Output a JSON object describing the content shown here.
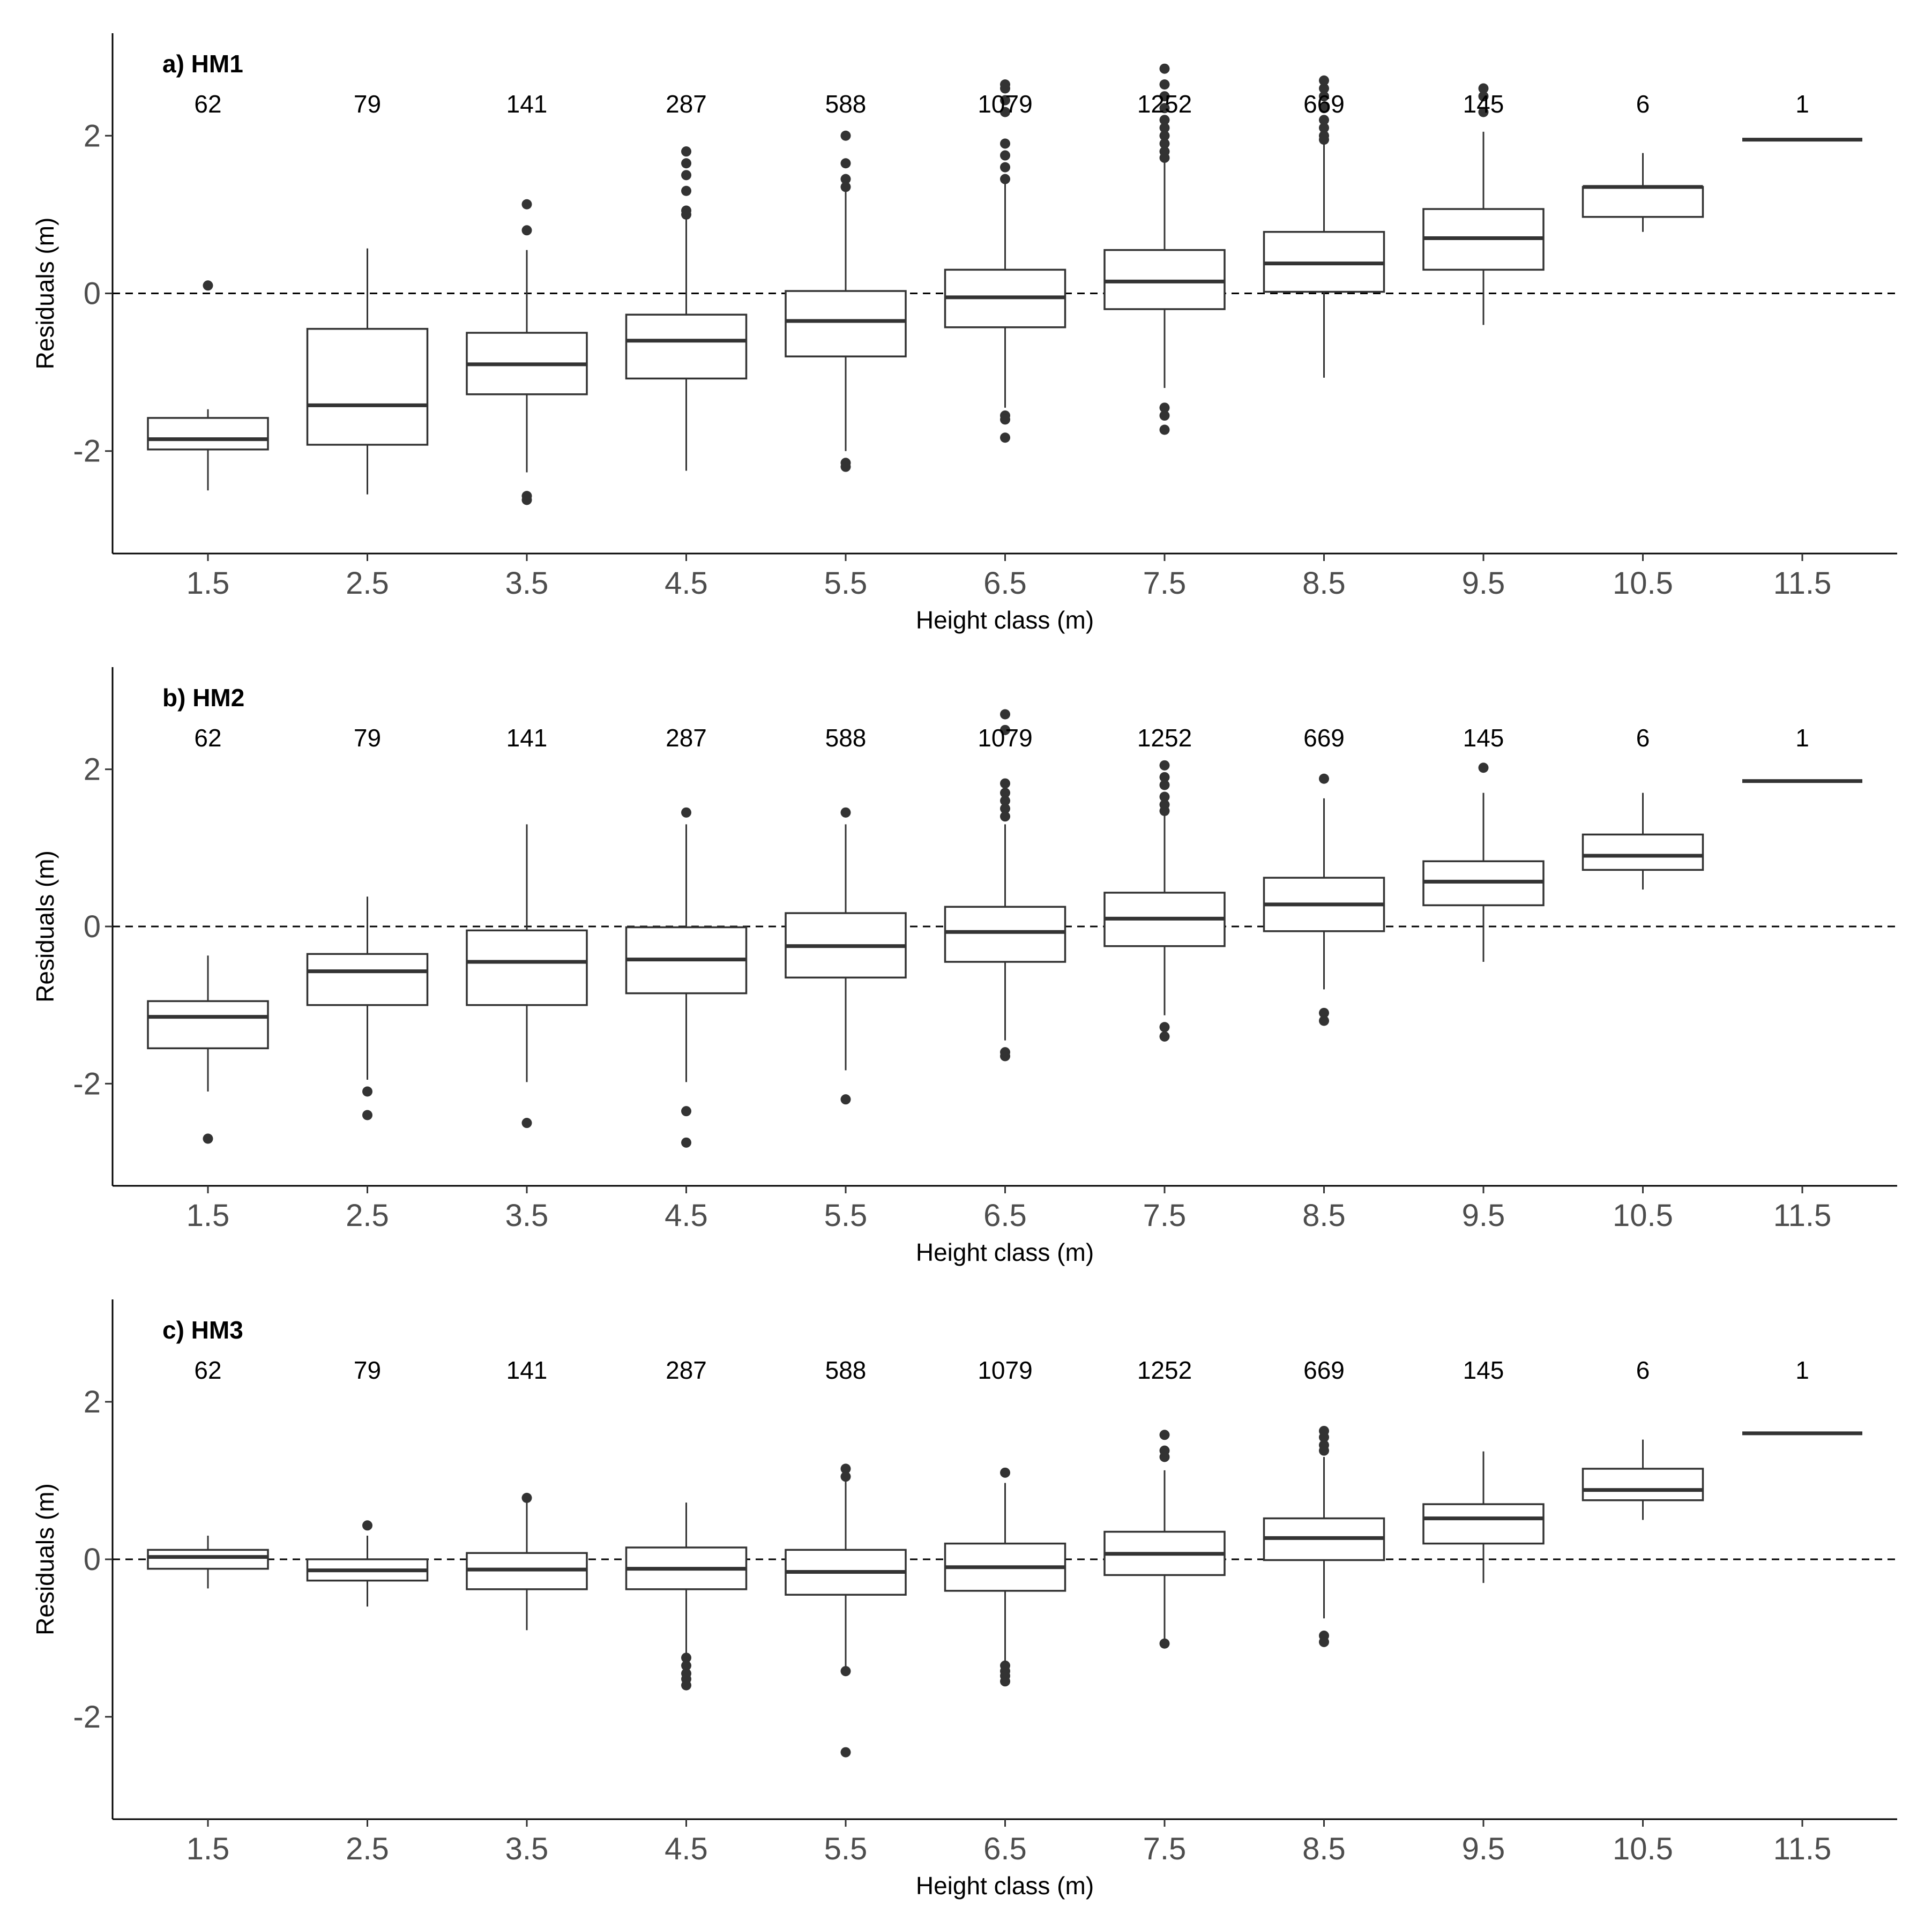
{
  "chart_data": [
    {
      "type": "boxplot",
      "title": "a) HM1",
      "xlabel": "Height class (m)",
      "ylabel": "Residuals (m)",
      "ylim": [
        -3.3,
        3.3
      ],
      "yticks": [
        -2,
        0,
        2
      ],
      "reference_line": 0,
      "categories": [
        "1.5",
        "2.5",
        "3.5",
        "4.5",
        "5.5",
        "6.5",
        "7.5",
        "8.5",
        "9.5",
        "10.5",
        "11.5"
      ],
      "counts": [
        "62",
        "79",
        "141",
        "287",
        "588",
        "1079",
        "1252",
        "669",
        "145",
        "6",
        "1"
      ],
      "boxes": [
        {
          "lower_whisker": -2.5,
          "q1": -1.98,
          "median": -1.85,
          "q3": -1.58,
          "upper_whisker": -1.47,
          "outliers": [
            0.1
          ]
        },
        {
          "lower_whisker": -2.55,
          "q1": -1.92,
          "median": -1.42,
          "q3": -0.45,
          "upper_whisker": 0.57,
          "outliers": []
        },
        {
          "lower_whisker": -2.27,
          "q1": -1.28,
          "median": -0.9,
          "q3": -0.5,
          "upper_whisker": 0.55,
          "outliers": [
            0.8,
            1.13,
            -2.57,
            -2.62
          ]
        },
        {
          "lower_whisker": -2.25,
          "q1": -1.08,
          "median": -0.6,
          "q3": -0.27,
          "upper_whisker": 0.95,
          "outliers": [
            1.0,
            1.05,
            1.3,
            1.5,
            1.65,
            1.8
          ]
        },
        {
          "lower_whisker": -2.0,
          "q1": -0.8,
          "median": -0.35,
          "q3": 0.03,
          "upper_whisker": 1.3,
          "outliers": [
            1.35,
            1.45,
            1.65,
            2.0,
            -2.15,
            -2.2
          ]
        },
        {
          "lower_whisker": -1.45,
          "q1": -0.43,
          "median": -0.05,
          "q3": 0.3,
          "upper_whisker": 1.4,
          "outliers": [
            1.45,
            1.6,
            1.75,
            1.9,
            2.3,
            2.45,
            2.6,
            2.65,
            -1.55,
            -1.6,
            -1.83
          ]
        },
        {
          "lower_whisker": -1.2,
          "q1": -0.2,
          "median": 0.15,
          "q3": 0.55,
          "upper_whisker": 1.68,
          "outliers": [
            1.72,
            1.8,
            1.9,
            2.0,
            2.1,
            2.2,
            2.35,
            2.5,
            2.65,
            2.85,
            -1.45,
            -1.55,
            -1.73
          ]
        },
        {
          "lower_whisker": -1.07,
          "q1": 0.02,
          "median": 0.38,
          "q3": 0.78,
          "upper_whisker": 1.9,
          "outliers": [
            1.95,
            2.0,
            2.1,
            2.2,
            2.35,
            2.5,
            2.6,
            2.7
          ]
        },
        {
          "lower_whisker": -0.4,
          "q1": 0.3,
          "median": 0.7,
          "q3": 1.07,
          "upper_whisker": 2.05,
          "outliers": [
            2.3,
            2.5,
            2.6
          ]
        },
        {
          "lower_whisker": 0.78,
          "q1": 0.97,
          "median": 1.35,
          "q3": 1.35,
          "upper_whisker": 1.78,
          "outliers": []
        },
        {
          "lower_whisker": 1.95,
          "q1": 1.95,
          "median": 1.95,
          "q3": 1.95,
          "upper_whisker": 1.95,
          "outliers": []
        }
      ]
    },
    {
      "type": "boxplot",
      "title": "b) HM2",
      "xlabel": "Height class (m)",
      "ylabel": "Residuals (m)",
      "ylim": [
        -3.3,
        3.3
      ],
      "yticks": [
        -2,
        0,
        2
      ],
      "reference_line": 0,
      "categories": [
        "1.5",
        "2.5",
        "3.5",
        "4.5",
        "5.5",
        "6.5",
        "7.5",
        "8.5",
        "9.5",
        "10.5",
        "11.5"
      ],
      "counts": [
        "62",
        "79",
        "141",
        "287",
        "588",
        "1079",
        "1252",
        "669",
        "145",
        "6",
        "1"
      ],
      "boxes": [
        {
          "lower_whisker": -2.1,
          "q1": -1.55,
          "median": -1.15,
          "q3": -0.95,
          "upper_whisker": -0.37,
          "outliers": [
            -2.7
          ]
        },
        {
          "lower_whisker": -1.95,
          "q1": -1.0,
          "median": -0.57,
          "q3": -0.35,
          "upper_whisker": 0.38,
          "outliers": [
            -2.1,
            -2.4
          ]
        },
        {
          "lower_whisker": -1.98,
          "q1": -1.0,
          "median": -0.45,
          "q3": -0.05,
          "upper_whisker": 1.3,
          "outliers": [
            -2.5
          ]
        },
        {
          "lower_whisker": -1.98,
          "q1": -0.85,
          "median": -0.42,
          "q3": -0.01,
          "upper_whisker": 1.3,
          "outliers": [
            1.45,
            -2.35,
            -2.75
          ]
        },
        {
          "lower_whisker": -1.83,
          "q1": -0.65,
          "median": -0.25,
          "q3": 0.17,
          "upper_whisker": 1.3,
          "outliers": [
            1.45,
            -2.2
          ]
        },
        {
          "lower_whisker": -1.45,
          "q1": -0.45,
          "median": -0.07,
          "q3": 0.25,
          "upper_whisker": 1.3,
          "outliers": [
            1.4,
            1.5,
            1.6,
            1.7,
            1.82,
            2.7,
            2.5,
            -1.6,
            -1.65
          ]
        },
        {
          "lower_whisker": -1.13,
          "q1": -0.25,
          "median": 0.1,
          "q3": 0.43,
          "upper_whisker": 1.42,
          "outliers": [
            1.47,
            1.55,
            1.65,
            1.8,
            1.9,
            2.05,
            -1.28,
            -1.4
          ]
        },
        {
          "lower_whisker": -0.8,
          "q1": -0.06,
          "median": 0.28,
          "q3": 0.62,
          "upper_whisker": 1.63,
          "outliers": [
            1.88,
            -1.1,
            -1.2
          ]
        },
        {
          "lower_whisker": -0.45,
          "q1": 0.27,
          "median": 0.57,
          "q3": 0.83,
          "upper_whisker": 1.7,
          "outliers": [
            2.02
          ]
        },
        {
          "lower_whisker": 0.47,
          "q1": 0.72,
          "median": 0.9,
          "q3": 1.17,
          "upper_whisker": 1.7,
          "outliers": []
        },
        {
          "lower_whisker": 1.85,
          "q1": 1.85,
          "median": 1.85,
          "q3": 1.85,
          "upper_whisker": 1.85,
          "outliers": []
        }
      ]
    },
    {
      "type": "boxplot",
      "title": "c) HM3",
      "xlabel": "Height class (m)",
      "ylabel": "Residuals (m)",
      "ylim": [
        -3.3,
        3.3
      ],
      "yticks": [
        -2,
        0,
        2
      ],
      "reference_line": 0,
      "categories": [
        "1.5",
        "2.5",
        "3.5",
        "4.5",
        "5.5",
        "6.5",
        "7.5",
        "8.5",
        "9.5",
        "10.5",
        "11.5"
      ],
      "counts": [
        "62",
        "79",
        "141",
        "287",
        "588",
        "1079",
        "1252",
        "669",
        "145",
        "6",
        "1"
      ],
      "boxes": [
        {
          "lower_whisker": -0.37,
          "q1": -0.12,
          "median": 0.03,
          "q3": 0.12,
          "upper_whisker": 0.3,
          "outliers": []
        },
        {
          "lower_whisker": -0.6,
          "q1": -0.27,
          "median": -0.14,
          "q3": 0.0,
          "upper_whisker": 0.3,
          "outliers": [
            0.43
          ]
        },
        {
          "lower_whisker": -0.9,
          "q1": -0.38,
          "median": -0.13,
          "q3": 0.08,
          "upper_whisker": 0.75,
          "outliers": [
            0.78
          ]
        },
        {
          "lower_whisker": -1.2,
          "q1": -0.38,
          "median": -0.12,
          "q3": 0.15,
          "upper_whisker": 0.72,
          "outliers": [
            -1.25,
            -1.35,
            -1.45,
            -1.52,
            -1.6
          ]
        },
        {
          "lower_whisker": -1.4,
          "q1": -0.45,
          "median": -0.16,
          "q3": 0.12,
          "upper_whisker": 1.0,
          "outliers": [
            1.05,
            1.15,
            -1.42,
            -2.45
          ]
        },
        {
          "lower_whisker": -1.3,
          "q1": -0.4,
          "median": -0.1,
          "q3": 0.2,
          "upper_whisker": 0.97,
          "outliers": [
            1.1,
            -1.35,
            -1.42,
            -1.48,
            -1.55
          ]
        },
        {
          "lower_whisker": -1.05,
          "q1": -0.2,
          "median": 0.07,
          "q3": 0.35,
          "upper_whisker": 1.13,
          "outliers": [
            1.3,
            1.38,
            1.58,
            -1.07
          ]
        },
        {
          "lower_whisker": -0.75,
          "q1": -0.01,
          "median": 0.27,
          "q3": 0.52,
          "upper_whisker": 1.3,
          "outliers": [
            1.38,
            1.45,
            1.55,
            1.63,
            -0.97,
            -1.05
          ]
        },
        {
          "lower_whisker": -0.3,
          "q1": 0.2,
          "median": 0.52,
          "q3": 0.7,
          "upper_whisker": 1.37,
          "outliers": []
        },
        {
          "lower_whisker": 0.5,
          "q1": 0.75,
          "median": 0.88,
          "q3": 1.15,
          "upper_whisker": 1.52,
          "outliers": []
        },
        {
          "lower_whisker": 1.6,
          "q1": 1.6,
          "median": 1.6,
          "q3": 1.6,
          "upper_whisker": 1.6,
          "outliers": []
        }
      ]
    }
  ]
}
